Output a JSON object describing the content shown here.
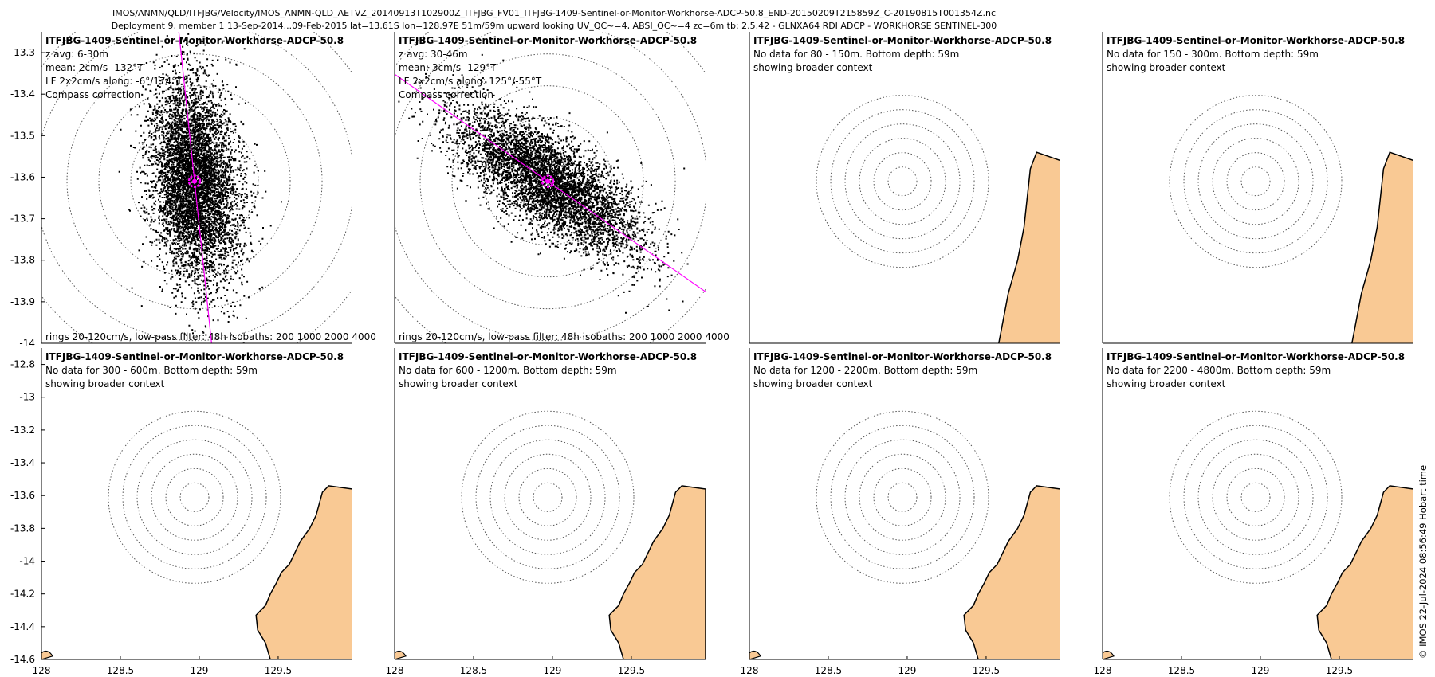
{
  "header": {
    "line1": "IMOS/ANMN/QLD/ITFJBG/Velocity/IMOS_ANMN-QLD_AETVZ_20140913T102900Z_ITFJBG_FV01_ITFJBG-1409-Sentinel-or-Monitor-Workhorse-ADCP-50.8_END-20150209T215859Z_C-20190815T001354Z.nc",
    "line2": "Deployment 9, member 1 13-Sep-2014...09-Feb-2015 lat=13.61S lon=128.97E 51m/59m upward looking UV_QC~=4, ABSI_QC~=4 zc=6m tb: 2.5.42 - GLNXA64 RDI ADCP - WORKHORSE SENTINEL-300"
  },
  "credit": "© IMOS 22-Jul-2024 08:56:49 Hobart time",
  "colors": {
    "land": "#f9c994",
    "ellipse": "#ff00ff",
    "scatter": "#000000"
  },
  "chart_data": {
    "type": "scatter",
    "station": {
      "lon": 128.97,
      "lat": -13.61
    },
    "top_row": {
      "ylim": [
        -14.0,
        -13.25
      ],
      "yticks": [
        "-13.3",
        "-13.4",
        "-13.5",
        "-13.6",
        "-13.7",
        "-13.8",
        "-13.9",
        "-14"
      ],
      "ytick_values": [
        -13.3,
        -13.4,
        -13.5,
        -13.6,
        -13.7,
        -13.8,
        -13.9,
        -14.0
      ]
    },
    "bottom_row": {
      "ylim": [
        -14.6,
        -12.7
      ],
      "yticks": [
        "-12.8",
        "-13",
        "-13.2",
        "-13.4",
        "-13.6",
        "-13.8",
        "-14",
        "-14.2",
        "-14.4",
        "-14.6"
      ],
      "ytick_values": [
        -12.8,
        -13.0,
        -13.2,
        -13.4,
        -13.6,
        -13.8,
        -14.0,
        -14.2,
        -14.4,
        -14.6
      ]
    },
    "xlim": [
      128.0,
      129.97
    ],
    "xticks": [
      "128",
      "128.5",
      "129",
      "129.5"
    ],
    "xtick_values": [
      128.0,
      128.5,
      129.0,
      129.5
    ],
    "panels": [
      {
        "title": "ITFJBG-1409-Sentinel-or-Monitor-Workhorse-ADCP-50.8",
        "lines": [
          "z avg: 6-30m",
          "mean: 2cm/s -132°T",
          "LF 2x2cm/s along: -6°/174°T",
          "Compass correction"
        ],
        "footer": "rings 20-120cm/s, low-pass filter: 48h isobaths: 200 1000 2000 4000",
        "has_data": true,
        "major_axis_deg": -6,
        "spread": [
          0.05,
          0.12
        ]
      },
      {
        "title": "ITFJBG-1409-Sentinel-or-Monitor-Workhorse-ADCP-50.8",
        "lines": [
          "z avg: 30-46m",
          "mean: 3cm/s -129°T",
          "LF 2x2cm/s along: 125°/-55°T",
          "Compass correction"
        ],
        "footer": "rings 20-120cm/s, low-pass filter: 48h isobaths: 200 1000 2000 4000",
        "has_data": true,
        "major_axis_deg": 125,
        "spread": [
          0.05,
          0.13
        ]
      },
      {
        "title": "ITFJBG-1409-Sentinel-or-Monitor-Workhorse-ADCP-50.8",
        "lines": [
          "No data for 80 - 150m. Bottom depth: 59m",
          "showing broader context"
        ],
        "footer": "",
        "has_data": false
      },
      {
        "title": "ITFJBG-1409-Sentinel-or-Monitor-Workhorse-ADCP-50.8",
        "lines": [
          "No data for 150 - 300m. Bottom depth: 59m",
          "showing broader context"
        ],
        "footer": "",
        "has_data": false
      },
      {
        "title": "ITFJBG-1409-Sentinel-or-Monitor-Workhorse-ADCP-50.8",
        "lines": [
          "No data for 300 - 600m. Bottom depth: 59m",
          "showing broader context"
        ],
        "footer": "",
        "has_data": false
      },
      {
        "title": "ITFJBG-1409-Sentinel-or-Monitor-Workhorse-ADCP-50.8",
        "lines": [
          "No data for 600 - 1200m. Bottom depth: 59m",
          "showing broader context"
        ],
        "footer": "",
        "has_data": false
      },
      {
        "title": "ITFJBG-1409-Sentinel-or-Monitor-Workhorse-ADCP-50.8",
        "lines": [
          "No data for 1200 - 2200m. Bottom depth: 59m",
          "showing broader context"
        ],
        "footer": "",
        "has_data": false
      },
      {
        "title": "ITFJBG-1409-Sentinel-or-Monitor-Workhorse-ADCP-50.8",
        "lines": [
          "No data for 2200 - 4800m. Bottom depth: 59m",
          "showing broader context"
        ],
        "footer": "",
        "has_data": false
      }
    ]
  }
}
